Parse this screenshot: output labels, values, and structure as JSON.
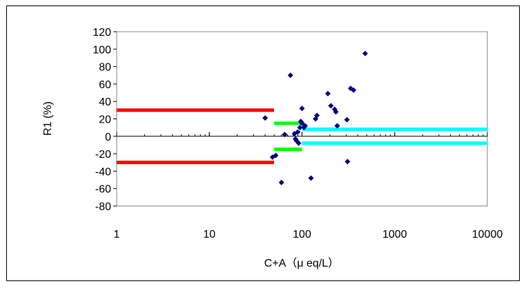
{
  "chart_data": {
    "type": "scatter",
    "title": "",
    "xlabel": "C+A（μ eq/L）",
    "ylabel": "R1 (%)",
    "x_scale": "log",
    "xlim": [
      1,
      10000
    ],
    "ylim": [
      -80,
      120
    ],
    "x_ticks": [
      "1",
      "10",
      "100",
      "1000",
      "10000"
    ],
    "y_ticks": [
      "120",
      "100",
      "80",
      "60",
      "40",
      "20",
      "0",
      "-20",
      "-40",
      "-60",
      "-80"
    ],
    "grid": false,
    "legend": "none",
    "colors": {
      "points": "#000080",
      "band_low": "#ff0000",
      "band_mid": "#00ff00",
      "band_high": "#00ffff"
    },
    "points": [
      [
        40,
        21
      ],
      [
        48,
        -24
      ],
      [
        52,
        -22
      ],
      [
        60,
        -53
      ],
      [
        65,
        2
      ],
      [
        75,
        70
      ],
      [
        83,
        3
      ],
      [
        85,
        -3
      ],
      [
        87,
        -5
      ],
      [
        90,
        5
      ],
      [
        92,
        -8
      ],
      [
        95,
        10
      ],
      [
        97,
        17
      ],
      [
        100,
        32
      ],
      [
        100,
        15
      ],
      [
        105,
        10
      ],
      [
        108,
        12
      ],
      [
        125,
        -48
      ],
      [
        140,
        20
      ],
      [
        145,
        24
      ],
      [
        190,
        49
      ],
      [
        205,
        35
      ],
      [
        225,
        31
      ],
      [
        232,
        28
      ],
      [
        240,
        12
      ],
      [
        305,
        19
      ],
      [
        310,
        -29
      ],
      [
        335,
        55
      ],
      [
        360,
        53
      ],
      [
        480,
        95
      ]
    ],
    "bands": [
      {
        "color": "band_low",
        "x": [
          1,
          50
        ],
        "y": 30
      },
      {
        "color": "band_low",
        "x": [
          1,
          50
        ],
        "y": -30
      },
      {
        "color": "band_mid",
        "x": [
          50,
          100
        ],
        "y": 15
      },
      {
        "color": "band_mid",
        "x": [
          50,
          100
        ],
        "y": -15
      },
      {
        "color": "band_high",
        "x": [
          100,
          10000
        ],
        "y": 8
      },
      {
        "color": "band_high",
        "x": [
          100,
          10000
        ],
        "y": -8
      }
    ]
  }
}
